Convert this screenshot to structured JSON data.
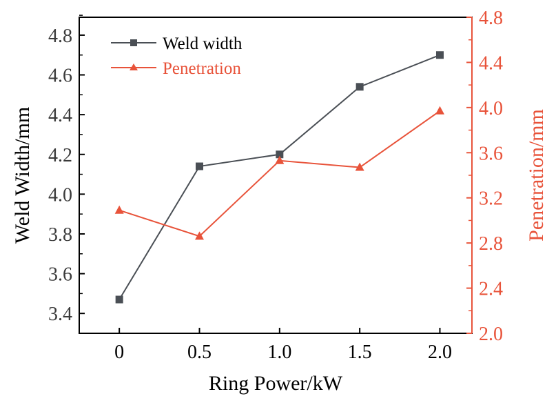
{
  "chart_data": {
    "type": "line",
    "xlabel": "Ring Power/kW",
    "ylabel_left": "Weld Width/mm",
    "ylabel_right": "Penetration/mm",
    "x": [
      0,
      0.5,
      1.0,
      1.5,
      2.0
    ],
    "x_tick_labels": [
      "0",
      "0.5",
      "1.0",
      "1.5",
      "2.0"
    ],
    "xlim": [
      -0.25,
      2.2
    ],
    "ylim_left": [
      3.3,
      4.89
    ],
    "ylim_right": [
      2.0,
      4.8
    ],
    "left_ticks": [
      "3.4",
      "3.6",
      "3.8",
      "4.0",
      "4.2",
      "4.4",
      "4.6",
      "4.8"
    ],
    "right_ticks": [
      "2.0",
      "2.4",
      "2.8",
      "3.2",
      "3.6",
      "4.0",
      "4.4",
      "4.8"
    ],
    "legend_position": "top-left",
    "grid": false,
    "series": [
      {
        "name": "Weld width",
        "axis": "left",
        "marker": "square",
        "color": "#4a4f55",
        "values": [
          3.47,
          4.14,
          4.2,
          4.54,
          4.7
        ]
      },
      {
        "name": "Penetration",
        "axis": "right",
        "marker": "triangle",
        "color": "#e8533a",
        "values": [
          3.09,
          2.86,
          3.53,
          3.47,
          3.97
        ]
      }
    ]
  }
}
